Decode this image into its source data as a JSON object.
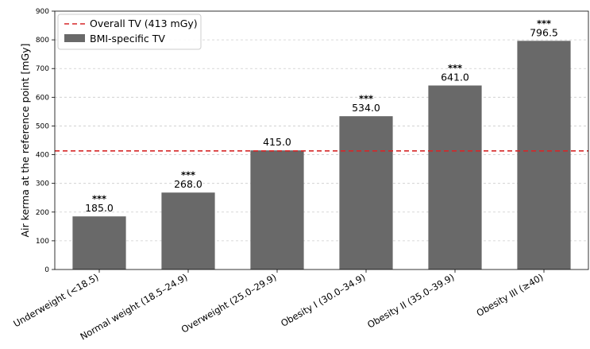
{
  "chart_data": {
    "type": "bar",
    "categories": [
      "Underweight (<18.5)",
      "Normal weight (18.5–24.9)",
      "Overweight (25.0–29.9)",
      "Obesity I (30.0–34.9)",
      "Obesity II (35.0–39.9)",
      "Obesity III (≥40)"
    ],
    "values": [
      185.0,
      268.0,
      415.0,
      534.0,
      641.0,
      796.5
    ],
    "value_labels": [
      "185.0",
      "268.0",
      "415.0",
      "534.0",
      "641.0",
      "796.5"
    ],
    "significance": [
      "***",
      "***",
      "",
      "***",
      "***",
      "***"
    ],
    "reference_line": {
      "value": 413,
      "label": "Overall TV (413 mGy)",
      "color": "#d62728",
      "style": "dashed"
    },
    "bar_legend_label": "BMI-specific TV",
    "bar_color": "#696969",
    "ylabel": "Air kerma at the reference point [mGy]",
    "xlabel": "",
    "ylim": [
      0,
      900
    ],
    "yticks": [
      0,
      100,
      200,
      300,
      400,
      500,
      600,
      700,
      800,
      900
    ],
    "grid": "horizontal-dashed",
    "legend_position": "top-left"
  }
}
